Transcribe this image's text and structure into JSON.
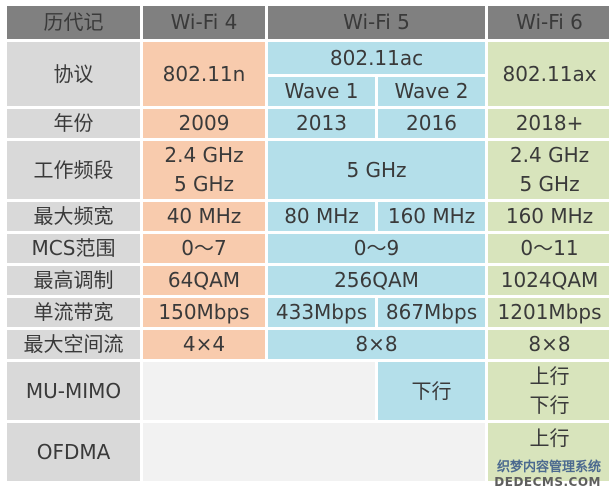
{
  "header": {
    "label": "历代记",
    "wifi4": "Wi-Fi 4",
    "wifi5": "Wi-Fi 5",
    "wifi6": "Wi-Fi 6"
  },
  "rows": {
    "protocol": {
      "label": "协议",
      "wifi4": "802.11n",
      "wifi5": "802.11ac",
      "wave1": "Wave 1",
      "wave2": "Wave 2",
      "wifi6": "802.11ax"
    },
    "year": {
      "label": "年份",
      "wifi4": "2009",
      "wave1": "2013",
      "wave2": "2016",
      "wifi6": "2018+"
    },
    "band": {
      "label": "工作频段",
      "wifi4_line1": "2.4 GHz",
      "wifi4_line2": "5 GHz",
      "wifi5": "5 GHz",
      "wifi6_line1": "2.4 GHz",
      "wifi6_line2": "5 GHz"
    },
    "bandwidth": {
      "label": "最大频宽",
      "wifi4": "40 MHz",
      "wave1": "80 MHz",
      "wave2": "160 MHz",
      "wifi6": "160 MHz"
    },
    "mcs": {
      "label": "MCS范围",
      "wifi4": "0～7",
      "wifi5": "0～9",
      "wifi6": "0～11"
    },
    "modulation": {
      "label": "最高调制",
      "wifi4": "64QAM",
      "wifi5": "256QAM",
      "wifi6": "1024QAM"
    },
    "stream_bw": {
      "label": "单流带宽",
      "wifi4": "150Mbps",
      "wave1": "433Mbps",
      "wave2": "867Mbps",
      "wifi6": "1201Mbps"
    },
    "spatial": {
      "label": "最大空间流",
      "wifi4": "4×4",
      "wifi5": "8×8",
      "wifi6": "8×8"
    },
    "mumimo": {
      "label": "MU-MIMO",
      "wave2": "下行",
      "wifi6_line1": "上行",
      "wifi6_line2": "下行"
    },
    "ofdma": {
      "label": "OFDMA",
      "wifi6_line1": "上行"
    }
  },
  "watermark": {
    "line1": "织梦内容管理系统",
    "line2": "DEDECMS.COM"
  },
  "colors": {
    "header": "#808080",
    "label_col": "#d9d9d9",
    "wifi4": "#f8cbad",
    "wifi5": "#b4dfea",
    "wifi6": "#d8e4bc",
    "empty": "#f2f2f2"
  }
}
